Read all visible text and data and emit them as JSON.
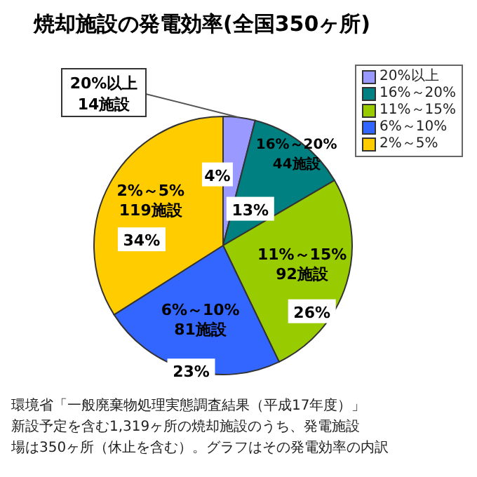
{
  "chart_data": {
    "type": "pie",
    "title": "焼却施設の発電効率(全国350ヶ所)",
    "categories": [
      "20%以上",
      "16%～20%",
      "11%～15%",
      "6%～10%",
      "2%～5%"
    ],
    "values": [
      14,
      44,
      92,
      81,
      119
    ],
    "value_labels": [
      "14施設",
      "44施設",
      "92施設",
      "81施設",
      "119施設"
    ],
    "colors": [
      "#9999ff",
      "#008080",
      "#99cc00",
      "#3366ff",
      "#ffcc00"
    ],
    "legend": "right",
    "annotations": [
      {
        "text": "4%",
        "x": "20%以上"
      },
      {
        "text": "13%",
        "x": "16%～20%"
      },
      {
        "text": "26%",
        "x": "11%～15%"
      },
      {
        "text": "23%",
        "x": "6%～10%"
      },
      {
        "text": "34%",
        "x": "2%～5%"
      },
      "環境省「一般廃棄物処理実態調査結果（平成17年度）」",
      "新設予定を含む1,319ヶ所の焼却施設のうち、発電施設",
      "場は350ヶ所（休止を含む）。グラフはその発電効率の内訳"
    ]
  }
}
